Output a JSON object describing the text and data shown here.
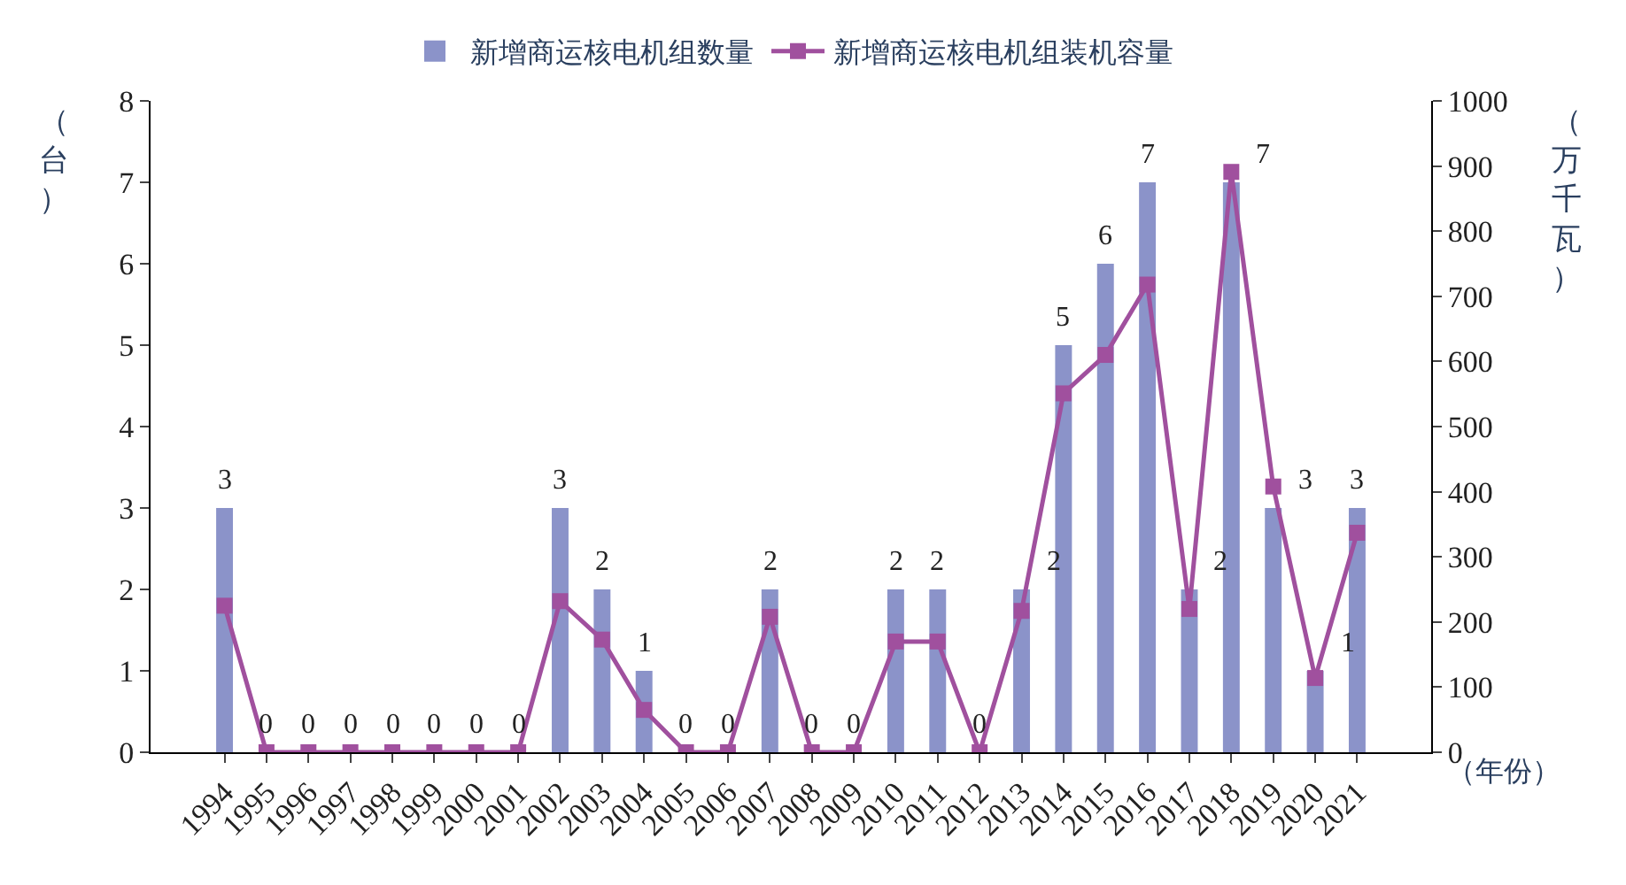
{
  "chart_data": {
    "type": "bar",
    "categories": [
      "1994",
      "1995",
      "1996",
      "1997",
      "1998",
      "1999",
      "2000",
      "2001",
      "2002",
      "2003",
      "2004",
      "2005",
      "2006",
      "2007",
      "2008",
      "2009",
      "2010",
      "2011",
      "2012",
      "2013",
      "2014",
      "2015",
      "2016",
      "2017",
      "2018",
      "2019",
      "2020",
      "2021"
    ],
    "series": [
      {
        "name": "新增商运核电机组数量",
        "color": "#8b93c9",
        "values": [
          3,
          0,
          0,
          0,
          0,
          0,
          0,
          0,
          3,
          2,
          1,
          0,
          0,
          2,
          0,
          0,
          2,
          2,
          0,
          2,
          5,
          6,
          7,
          2,
          7,
          3,
          1,
          3
        ],
        "value_labels": [
          "3",
          "0",
          "0",
          "0",
          "0",
          "0",
          "0",
          "0",
          "3",
          "2",
          "1",
          "0",
          "0",
          "2",
          "0",
          "0",
          "2",
          "2",
          "0",
          "2",
          "5",
          "6",
          "7",
          "2",
          "7",
          "3",
          "1",
          "3"
        ]
      },
      {
        "name": "新增商运核电机组装机容量",
        "type": "line",
        "axis": "y2",
        "color": "#a0509e",
        "marker": "square",
        "values": [
          225,
          0,
          0,
          0,
          0,
          0,
          0,
          0,
          232,
          173,
          65,
          0,
          0,
          208,
          0,
          0,
          170,
          170,
          0,
          217,
          551,
          610,
          718,
          220,
          891,
          408,
          114,
          337
        ]
      }
    ],
    "ylabel": "（台）",
    "y2label": "（万千瓦）",
    "xlabel": "（年份）",
    "ylim": [
      0,
      8
    ],
    "yticks": [
      0,
      1,
      2,
      3,
      4,
      5,
      6,
      7,
      8
    ],
    "y2lim": [
      0,
      1000
    ],
    "y2ticks": [
      0,
      100,
      200,
      300,
      400,
      500,
      600,
      700,
      800,
      900,
      1000
    ],
    "legend": "top"
  }
}
